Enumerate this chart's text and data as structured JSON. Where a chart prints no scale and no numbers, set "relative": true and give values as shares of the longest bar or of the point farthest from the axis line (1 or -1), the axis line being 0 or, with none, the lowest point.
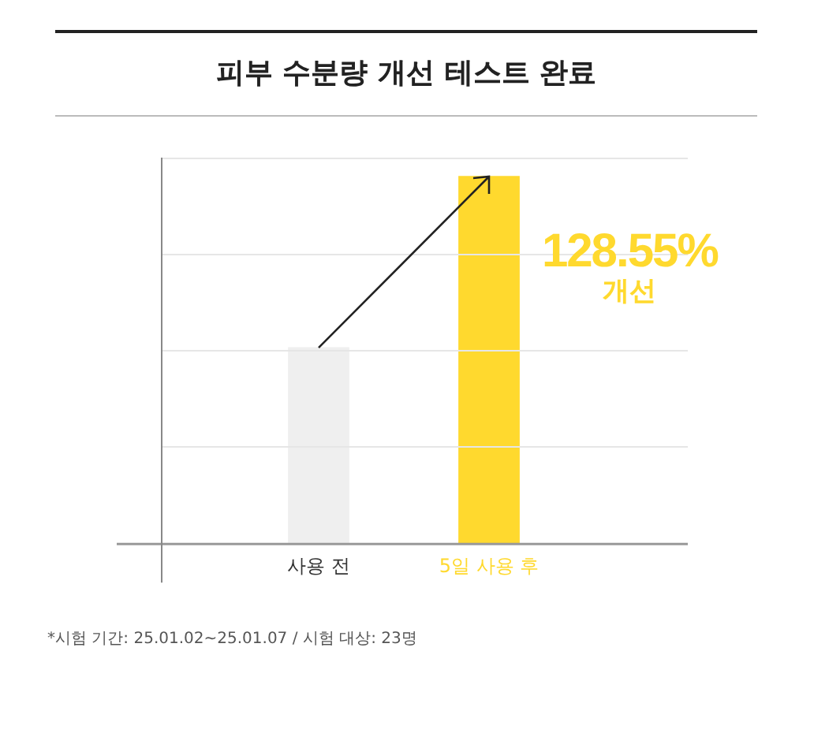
{
  "chart_data": {
    "type": "bar",
    "title": "피부 수분량 개선 테스트 완료",
    "categories": [
      "사용 전",
      "5일 사용 후"
    ],
    "values": [
      0.534,
      1
    ],
    "colors": [
      "#efefef",
      "#ffd92e"
    ],
    "relative": true,
    "grid": "y",
    "annotations": [
      "128.55% 개선",
      "*시험 기간: 25.01.02~25.01.07 / 시험 대상: 23명"
    ]
  }
}
